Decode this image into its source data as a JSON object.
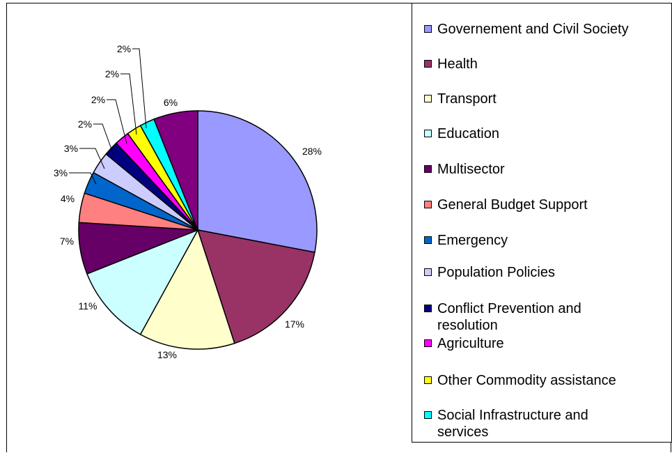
{
  "chart_data": {
    "type": "pie",
    "start_angle_deg": 0,
    "direction": "clockwise",
    "legend_position": "right",
    "slices": [
      {
        "label": "Governement and Civil Society",
        "value": 28,
        "value_label": "28%",
        "color": "#9999FF"
      },
      {
        "label": "Health",
        "value": 17,
        "value_label": "17%",
        "color": "#993366"
      },
      {
        "label": "Transport",
        "value": 13,
        "value_label": "13%",
        "color": "#FFFFCC"
      },
      {
        "label": "Education",
        "value": 11,
        "value_label": "11%",
        "color": "#CCFFFF"
      },
      {
        "label": "Multisector",
        "value": 7,
        "value_label": "7%",
        "color": "#660066"
      },
      {
        "label": "General Budget Support",
        "value": 4,
        "value_label": "4%",
        "color": "#FF8080"
      },
      {
        "label": "Emergency",
        "value": 3,
        "value_label": "3%",
        "color": "#0066CC"
      },
      {
        "label": "Population Policies",
        "value": 3,
        "value_label": "3%",
        "color": "#CCCCFF"
      },
      {
        "label": "Conflict Prevention and resolution",
        "value": 2,
        "value_label": "2%",
        "color": "#000080"
      },
      {
        "label": "Agriculture",
        "value": 2,
        "value_label": "2%",
        "color": "#FF00FF"
      },
      {
        "label": "Other Commodity assistance",
        "value": 2,
        "value_label": "2%",
        "color": "#FFFF00"
      },
      {
        "label": "Social Infrastructure and services",
        "value": 2,
        "value_label": "2%",
        "color": "#00FFFF"
      },
      {
        "label": "",
        "value": 6,
        "value_label": "6%",
        "color": "#800080"
      }
    ]
  }
}
